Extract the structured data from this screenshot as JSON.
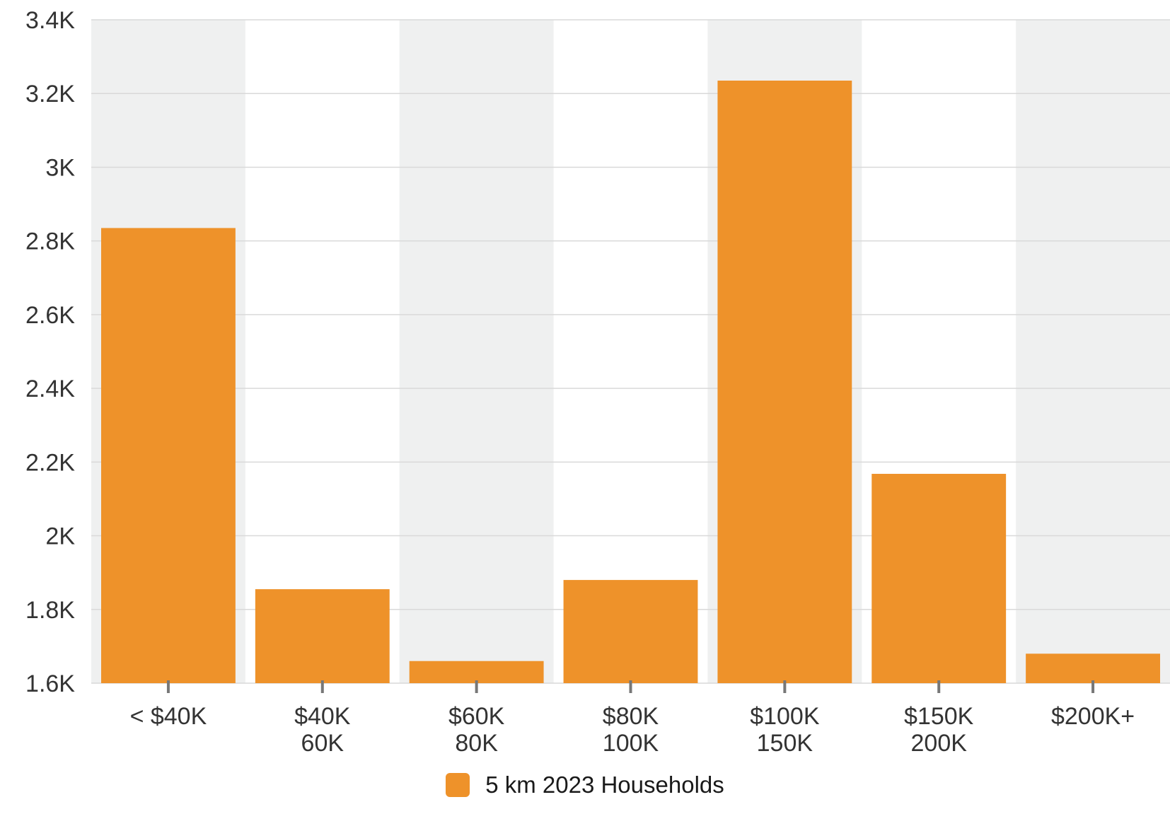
{
  "chart_data": {
    "type": "bar",
    "categories": [
      "< $40K",
      "$40K 60K",
      "$60K 80K",
      "$80K 100K",
      "$100K 150K",
      "$150K 200K",
      "$200K+"
    ],
    "category_lines": [
      [
        "< $40K"
      ],
      [
        "$40K",
        "60K"
      ],
      [
        "$60K",
        "80K"
      ],
      [
        "$80K",
        "100K"
      ],
      [
        "$100K",
        "150K"
      ],
      [
        "$150K",
        "200K"
      ],
      [
        "$200K+"
      ]
    ],
    "series": [
      {
        "name": "5 km 2023 Households",
        "color": "#EE922A",
        "values": [
          2835,
          1855,
          1660,
          1880,
          3235,
          2168,
          1680
        ]
      }
    ],
    "ylim": [
      1600,
      3400
    ],
    "yticks": [
      1600,
      1800,
      2000,
      2200,
      2400,
      2600,
      2800,
      3000,
      3200,
      3400
    ],
    "ytick_labels": [
      "1.6K",
      "1.8K",
      "2K",
      "2.2K",
      "2.4K",
      "2.6K",
      "2.8K",
      "3K",
      "3.2K",
      "3.4K"
    ],
    "grid": true,
    "band_color": "#EFF0F0",
    "legend_position": "bottom-center"
  }
}
